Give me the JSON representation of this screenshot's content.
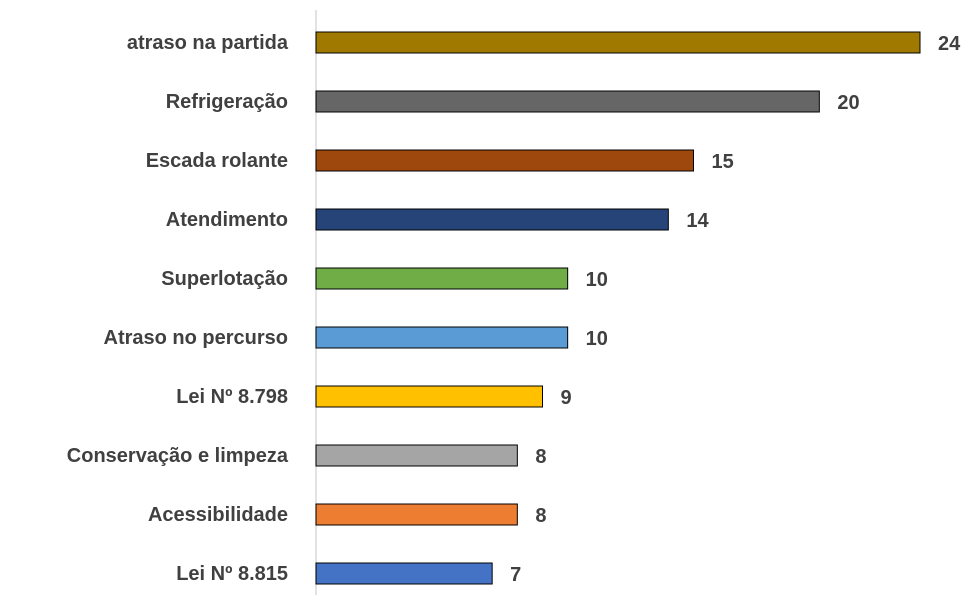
{
  "chart_data": {
    "type": "barh",
    "categories": [
      "atraso na partida",
      "Refrigeração",
      "Escada rolante",
      "Atendimento",
      "Superlotação",
      "Atraso no percurso",
      "Lei Nº 8.798",
      "Conservação e limpeza",
      "Acessibilidade",
      "Lei Nº 8.815"
    ],
    "values": [
      24,
      20,
      15,
      14,
      10,
      10,
      9,
      8,
      8,
      7
    ],
    "colors": [
      "#a07a00",
      "#666666",
      "#9e480e",
      "#264478",
      "#70ad47",
      "#5b9bd5",
      "#ffc000",
      "#a5a5a5",
      "#ed7d31",
      "#4472c4"
    ],
    "xlim": [
      0,
      24
    ]
  }
}
